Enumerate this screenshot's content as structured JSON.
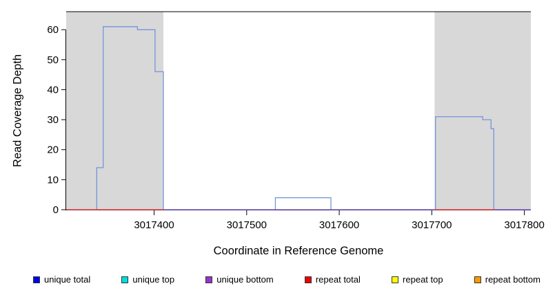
{
  "chart_data": {
    "type": "line",
    "subtype": "step-coverage",
    "title": "",
    "xlabel": "Coordinate in Reference Genome",
    "ylabel": "Read Coverage Depth",
    "xlim": [
      3017305,
      3017807
    ],
    "ylim": [
      0,
      66
    ],
    "xticks": [
      3017400,
      3017500,
      3017600,
      3017700,
      3017800
    ],
    "yticks": [
      0,
      10,
      20,
      30,
      40,
      50,
      60
    ],
    "grid": false,
    "top_boundary_line_y": 66,
    "region_color": "#d8d8d8",
    "axis_color": "#000000",
    "shaded_regions": [
      {
        "x0": 3017305,
        "x1": 3017410
      },
      {
        "x0": 3017703,
        "x1": 3017807
      }
    ],
    "series": [
      {
        "name": "unique total",
        "color": "#7494dc",
        "width": 1.3,
        "runs": [
          [
            [
              3017305,
              3017338,
              0
            ],
            [
              3017338,
              3017345,
              14
            ],
            [
              3017345,
              3017382,
              61
            ],
            [
              3017382,
              3017401,
              60
            ],
            [
              3017401,
              3017410,
              46
            ],
            [
              3017410,
              3017531,
              0
            ],
            [
              3017531,
              3017591,
              4
            ],
            [
              3017591,
              3017704,
              0
            ],
            [
              3017704,
              3017755,
              31
            ],
            [
              3017755,
              3017764,
              30
            ],
            [
              3017764,
              3017767,
              27
            ],
            [
              3017767,
              3017807,
              0
            ]
          ]
        ]
      },
      {
        "name": "unique top",
        "color": "#00cccc",
        "width": 1.1,
        "runs": [
          [
            [
              3017305,
              3017807,
              0
            ]
          ]
        ]
      },
      {
        "name": "unique bottom",
        "color": "#7a52c7",
        "width": 1.2,
        "runs": [
          [
            [
              3017305,
              3017807,
              0
            ]
          ]
        ]
      },
      {
        "name": "repeat total",
        "color": "#ff3b30",
        "width": 1.2,
        "runs": [
          [
            [
              3017305,
              3017410,
              0
            ]
          ],
          [
            [
              3017703,
              3017768,
              0
            ]
          ]
        ]
      }
    ],
    "legend": {
      "position": "bottom",
      "items": [
        {
          "label": "unique total",
          "color": "#0000ee"
        },
        {
          "label": "unique top",
          "color": "#00dddd"
        },
        {
          "label": "unique bottom",
          "color": "#9932cc"
        },
        {
          "label": "repeat total",
          "color": "#ee0000"
        },
        {
          "label": "repeat top",
          "color": "#ffff00"
        },
        {
          "label": "repeat bottom",
          "color": "#ff9900"
        }
      ]
    }
  }
}
